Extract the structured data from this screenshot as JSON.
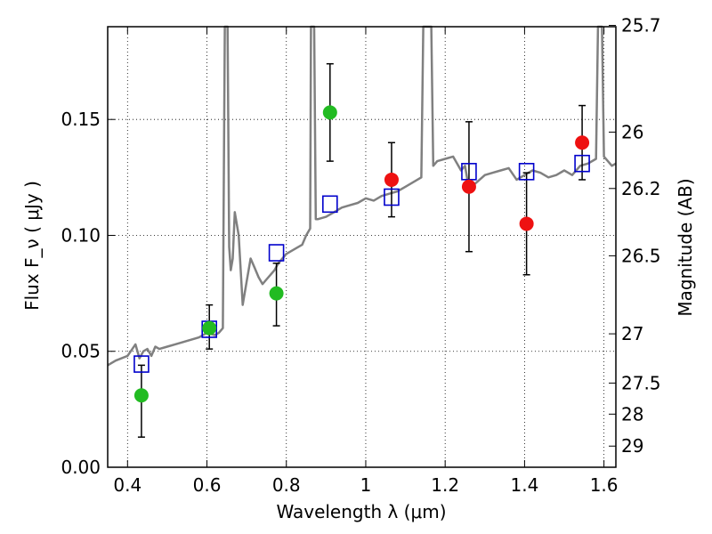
{
  "chart_data": {
    "type": "scatter",
    "xlabel": "Wavelength  λ (μm)",
    "ylabel": "Flux  F_ν  ( μJy )",
    "y2label": "Magnitude (AB)",
    "xlim": [
      0.35,
      1.63
    ],
    "ylim": [
      0.0,
      0.19
    ],
    "grid": true,
    "x_ticks": [
      0.4,
      0.6,
      0.8,
      1.0,
      1.2,
      1.4,
      1.6
    ],
    "x_tick_labels": [
      "0.4",
      "0.6",
      "0.8",
      "1",
      "1.2",
      "1.4",
      "1.6"
    ],
    "y_ticks": [
      0.0,
      0.05,
      0.1,
      0.15
    ],
    "y_tick_labels": [
      "0.00",
      "0.05",
      "0.10",
      "0.15"
    ],
    "y2_ticks": [
      {
        "label": "25.7",
        "mag": 25.7
      },
      {
        "label": "26",
        "mag": 26.0
      },
      {
        "label": "26.2",
        "mag": 26.2
      },
      {
        "label": "26.5",
        "mag": 26.5
      },
      {
        "label": "27",
        "mag": 27.0
      },
      {
        "label": "27.5",
        "mag": 27.5
      },
      {
        "label": "28",
        "mag": 28.0
      },
      {
        "label": "29",
        "mag": 29.0
      }
    ],
    "series": [
      {
        "marker": "circle",
        "color": "#22bb22",
        "points": [
          {
            "x": 0.435,
            "y": 0.031,
            "err_low": 0.013,
            "err_high": 0.044
          },
          {
            "x": 0.606,
            "y": 0.06,
            "err_low": 0.051,
            "err_high": 0.07
          },
          {
            "x": 0.775,
            "y": 0.075,
            "err_low": 0.061,
            "err_high": 0.088
          },
          {
            "x": 0.91,
            "y": 0.153,
            "err_low": 0.132,
            "err_high": 0.174
          }
        ]
      },
      {
        "marker": "circle",
        "color": "#ee1111",
        "points": [
          {
            "x": 1.065,
            "y": 0.124,
            "err_low": 0.108,
            "err_high": 0.14
          },
          {
            "x": 1.26,
            "y": 0.121,
            "err_low": 0.093,
            "err_high": 0.149
          },
          {
            "x": 1.405,
            "y": 0.105,
            "err_low": 0.083,
            "err_high": 0.127
          },
          {
            "x": 1.545,
            "y": 0.14,
            "err_low": 0.124,
            "err_high": 0.156
          }
        ]
      },
      {
        "marker": "open-square",
        "color": "#0000cc",
        "points": [
          {
            "x": 0.435,
            "y": 0.0445
          },
          {
            "x": 0.606,
            "y": 0.0595
          },
          {
            "x": 0.775,
            "y": 0.0925
          },
          {
            "x": 0.91,
            "y": 0.1135
          },
          {
            "x": 1.065,
            "y": 0.1165
          },
          {
            "x": 1.26,
            "y": 0.1275
          },
          {
            "x": 1.405,
            "y": 0.1275
          },
          {
            "x": 1.545,
            "y": 0.131
          }
        ]
      },
      {
        "type": "line",
        "color": "#808080",
        "x": [
          0.35,
          0.37,
          0.4,
          0.42,
          0.43,
          0.44,
          0.45,
          0.46,
          0.47,
          0.48,
          0.5,
          0.52,
          0.54,
          0.56,
          0.58,
          0.6,
          0.62,
          0.63,
          0.64,
          0.645,
          0.648,
          0.652,
          0.656,
          0.66,
          0.665,
          0.67,
          0.68,
          0.69,
          0.7,
          0.71,
          0.72,
          0.73,
          0.74,
          0.75,
          0.76,
          0.77,
          0.78,
          0.79,
          0.8,
          0.82,
          0.84,
          0.85,
          0.86,
          0.862,
          0.866,
          0.87,
          0.874,
          0.88,
          0.9,
          0.92,
          0.94,
          0.96,
          0.98,
          1.0,
          1.02,
          1.04,
          1.06,
          1.08,
          1.1,
          1.12,
          1.14,
          1.145,
          1.15,
          1.155,
          1.16,
          1.165,
          1.17,
          1.18,
          1.2,
          1.22,
          1.24,
          1.25,
          1.26,
          1.28,
          1.3,
          1.32,
          1.34,
          1.36,
          1.38,
          1.4,
          1.42,
          1.44,
          1.46,
          1.48,
          1.5,
          1.52,
          1.54,
          1.56,
          1.58,
          1.585,
          1.59,
          1.595,
          1.6,
          1.62,
          1.63
        ],
        "y": [
          0.044,
          0.046,
          0.048,
          0.053,
          0.047,
          0.05,
          0.051,
          0.048,
          0.052,
          0.051,
          0.052,
          0.053,
          0.054,
          0.055,
          0.056,
          0.058,
          0.057,
          0.058,
          0.06,
          0.19,
          0.19,
          0.19,
          0.095,
          0.085,
          0.09,
          0.11,
          0.1,
          0.07,
          0.08,
          0.09,
          0.086,
          0.082,
          0.079,
          0.081,
          0.083,
          0.085,
          0.088,
          0.09,
          0.092,
          0.094,
          0.096,
          0.1,
          0.103,
          0.19,
          0.19,
          0.19,
          0.107,
          0.107,
          0.108,
          0.11,
          0.112,
          0.113,
          0.114,
          0.116,
          0.115,
          0.117,
          0.118,
          0.119,
          0.121,
          0.123,
          0.125,
          0.19,
          0.19,
          0.19,
          0.19,
          0.19,
          0.13,
          0.132,
          0.133,
          0.134,
          0.128,
          0.13,
          0.12,
          0.123,
          0.126,
          0.127,
          0.128,
          0.129,
          0.124,
          0.126,
          0.128,
          0.127,
          0.125,
          0.126,
          0.128,
          0.126,
          0.13,
          0.131,
          0.133,
          0.19,
          0.19,
          0.19,
          0.134,
          0.13,
          0.131
        ]
      }
    ]
  }
}
